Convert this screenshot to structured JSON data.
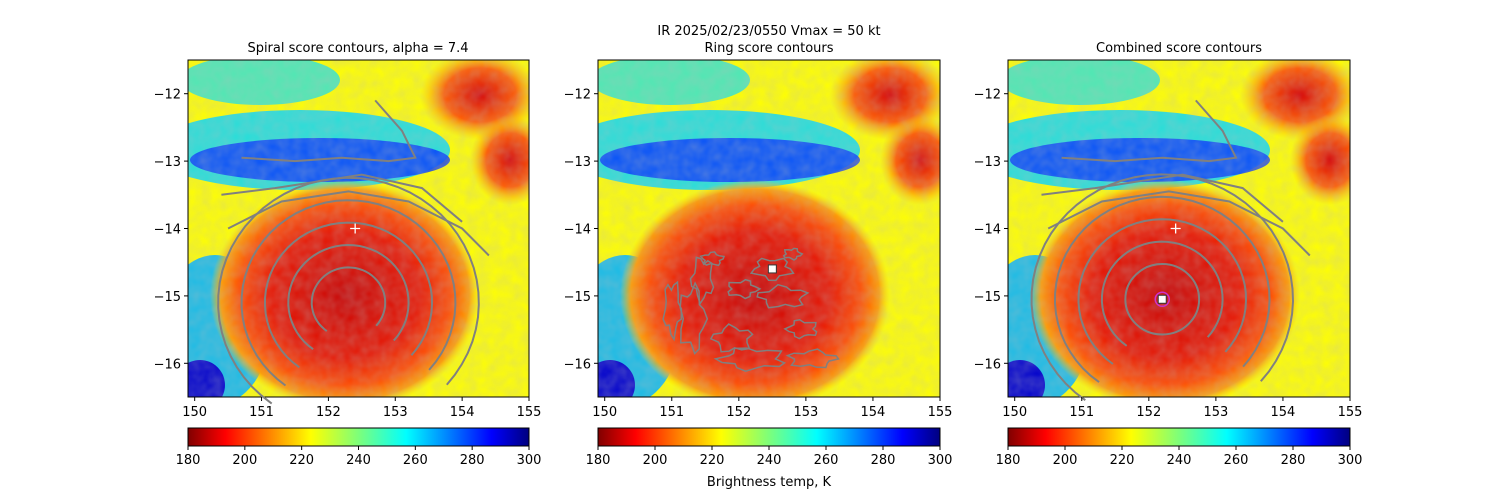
{
  "suptitle": "IR  2025/02/23/0550    Vmax = 50 kt",
  "colorbar_label": "Brightness temp, K",
  "chart_data": [
    {
      "type": "heatmap",
      "title": "Spiral score contours, alpha =  7.4",
      "xlim": [
        149.9,
        155.0
      ],
      "ylim": [
        -16.5,
        -11.5
      ],
      "xticks": [
        150,
        151,
        152,
        153,
        154,
        155
      ],
      "yticks": [
        -12,
        -13,
        -14,
        -15,
        -16
      ],
      "colorbar": {
        "min": 180,
        "max": 300,
        "ticks": [
          180,
          200,
          220,
          240,
          260,
          280,
          300
        ],
        "colormap": "jet_r"
      },
      "storm_center_estimate": [
        152.4,
        -14.0
      ],
      "contour_center": [
        152.3,
        -15.1
      ],
      "contour_color": "#808080",
      "marker_color": "#ffffff"
    },
    {
      "type": "heatmap",
      "title": "Ring score contours",
      "xlim": [
        149.9,
        155.0
      ],
      "ylim": [
        -16.5,
        -11.5
      ],
      "xticks": [
        150,
        151,
        152,
        153,
        154,
        155
      ],
      "yticks": [
        -12,
        -13,
        -14,
        -15,
        -16
      ],
      "colorbar": {
        "min": 180,
        "max": 300,
        "ticks": [
          180,
          200,
          220,
          240,
          260,
          280,
          300
        ],
        "colormap": "jet_r"
      },
      "ring_center": [
        152.5,
        -14.6
      ],
      "contour_color": "#808080",
      "marker_color": "#ffffff"
    },
    {
      "type": "heatmap",
      "title": "Combined score contours",
      "xlim": [
        149.9,
        155.0
      ],
      "ylim": [
        -16.5,
        -11.5
      ],
      "xticks": [
        150,
        151,
        152,
        153,
        154,
        155
      ],
      "yticks": [
        -12,
        -13,
        -14,
        -15,
        -16
      ],
      "colorbar": {
        "min": 180,
        "max": 300,
        "ticks": [
          180,
          200,
          220,
          240,
          260,
          280,
          300
        ],
        "colormap": "jet_r"
      },
      "storm_center_estimate": [
        152.4,
        -14.0
      ],
      "combined_center": [
        152.2,
        -15.05
      ],
      "contour_color": "#808080",
      "marker_color": "#ffffff",
      "center_ring_color": "#cc33cc"
    }
  ]
}
